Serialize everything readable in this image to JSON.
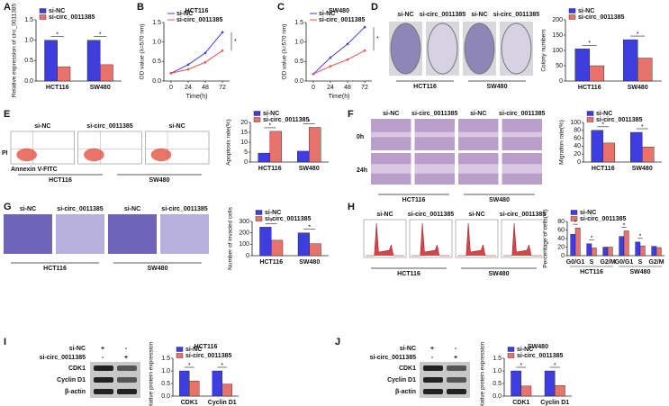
{
  "chart_data": [
    {
      "panel": "A",
      "type": "bar",
      "ylabel": "Relative expression of circ_0011385",
      "categories": [
        "HCT116",
        "SW480"
      ],
      "series": [
        {
          "name": "si-NC",
          "color": "#3d3de0",
          "values": [
            1.0,
            1.0
          ]
        },
        {
          "name": "si-circ_0011385",
          "color": "#e8736c",
          "values": [
            0.35,
            0.4
          ]
        }
      ],
      "ylim": [
        0,
        1.5
      ],
      "yticks": [
        {
          "value": 0,
          "label": "0.0"
        },
        {
          "value": 0.5,
          "label": "0.5"
        },
        {
          "value": 1,
          "label": "1.0"
        },
        {
          "value": 1.5,
          "label": "1.5"
        }
      ],
      "legend": "top-left",
      "annotations": [
        "*",
        "*"
      ]
    },
    {
      "panel": "B",
      "type": "line",
      "title": "HCT116",
      "xlabel": "Time(h)",
      "ylabel": "OD value (λ=570 nm)",
      "x": [
        0,
        24,
        48,
        72
      ],
      "xlim": [
        -10,
        82
      ],
      "xticks": [
        0,
        24,
        48,
        72
      ],
      "series": [
        {
          "name": "si-NC",
          "color": "#3d3de0",
          "values": [
            0.2,
            0.42,
            0.72,
            1.25
          ]
        },
        {
          "name": "si-circ_0011385",
          "color": "#e0544f",
          "values": [
            0.2,
            0.3,
            0.48,
            0.78
          ]
        }
      ],
      "ylim": [
        0,
        1.5
      ],
      "yticks": [
        {
          "value": 0,
          "label": "0.0"
        },
        {
          "value": 0.5,
          "label": "0.5"
        },
        {
          "value": 1,
          "label": "1.0"
        },
        {
          "value": 1.5,
          "label": "1.5"
        }
      ],
      "legend": "top-left",
      "annotations": [
        "*"
      ]
    },
    {
      "panel": "C",
      "type": "line",
      "title": "SW480",
      "xlabel": "Time(h)",
      "ylabel": "OD value (λ=570 nm)",
      "x": [
        0,
        24,
        48,
        72
      ],
      "xlim": [
        -10,
        82
      ],
      "xticks": [
        0,
        24,
        48,
        72
      ],
      "series": [
        {
          "name": "si-NC",
          "color": "#3d3de0",
          "values": [
            0.18,
            0.6,
            0.95,
            1.38
          ]
        },
        {
          "name": "si-circ_0011385",
          "color": "#e0544f",
          "values": [
            0.18,
            0.38,
            0.55,
            0.78
          ]
        }
      ],
      "ylim": [
        0,
        1.5
      ],
      "yticks": [
        {
          "value": 0,
          "label": "0.0"
        },
        {
          "value": 0.5,
          "label": "0.5"
        },
        {
          "value": 1,
          "label": "1.0"
        },
        {
          "value": 1.5,
          "label": "1.5"
        }
      ],
      "legend": "top-left",
      "annotations": [
        "*"
      ]
    },
    {
      "panel": "D",
      "type": "bar",
      "ylabel": "Colony numbers",
      "categories": [
        "HCT116",
        "SW480"
      ],
      "series": [
        {
          "name": "si-NC",
          "color": "#3d3de0",
          "values": [
            105,
            135
          ]
        },
        {
          "name": "si-circ_0011385",
          "color": "#e8736c",
          "values": [
            50,
            75
          ]
        }
      ],
      "ylim": [
        0,
        200
      ],
      "yticks": [
        0,
        50,
        100,
        150,
        200
      ],
      "legend": "top-left",
      "annotations": [
        "*",
        "*"
      ]
    },
    {
      "panel": "E",
      "type": "bar",
      "ylabel": "Apoptosis rate(%)",
      "categories": [
        "HCT116",
        "SW480"
      ],
      "series": [
        {
          "name": "si-NC",
          "color": "#3d3de0",
          "values": [
            4.5,
            5.5
          ]
        },
        {
          "name": "si-circ_0011385",
          "color": "#e8736c",
          "values": [
            15.5,
            17.5
          ]
        }
      ],
      "ylim": [
        0,
        20
      ],
      "yticks": [
        0,
        5,
        10,
        15,
        20
      ],
      "legend": "top-left",
      "annotations": [
        "*",
        "*"
      ]
    },
    {
      "panel": "F",
      "type": "bar",
      "ylabel": "Migration rate(%)",
      "categories": [
        "HCT116",
        "SW480"
      ],
      "series": [
        {
          "name": "si-NC",
          "color": "#3d3de0",
          "values": [
            80,
            75
          ]
        },
        {
          "name": "si-circ_0011385",
          "color": "#e8736c",
          "values": [
            48,
            38
          ]
        }
      ],
      "ylim": [
        0,
        100
      ],
      "yticks": [
        0,
        20,
        40,
        60,
        80,
        100
      ],
      "legend": "top-left",
      "annotations": [
        "*",
        "*"
      ]
    },
    {
      "panel": "G",
      "type": "bar",
      "ylabel": "Number of invaded cells",
      "categories": [
        "HCT116",
        "SW480"
      ],
      "series": [
        {
          "name": "si-NC",
          "color": "#3d3de0",
          "values": [
            250,
            200
          ]
        },
        {
          "name": "si-circ_0011385",
          "color": "#e8736c",
          "values": [
            135,
            105
          ]
        }
      ],
      "ylim": [
        0,
        300
      ],
      "yticks": [
        0,
        100,
        200,
        300
      ],
      "legend": "top-left",
      "annotations": [
        "*",
        "*"
      ]
    },
    {
      "panel": "H",
      "type": "bar",
      "ylabel": "Percentage of cells(%)",
      "categories": [
        "G0/G1",
        "S",
        "G2/M",
        "G0/G1",
        "S",
        "G2/M"
      ],
      "group_labels": [
        "HCT116",
        "SW480"
      ],
      "series": [
        {
          "name": "si-NC",
          "color": "#3d3de0",
          "values": [
            50,
            28,
            20,
            45,
            32,
            22
          ]
        },
        {
          "name": "si-circ_0011385",
          "color": "#e8736c",
          "values": [
            65,
            18,
            20,
            58,
            23,
            19
          ]
        }
      ],
      "ylim": [
        0,
        80
      ],
      "yticks": [
        0,
        20,
        40,
        60,
        80
      ],
      "legend": "top-left",
      "annotations": [
        "*",
        "*",
        null,
        "*",
        "*",
        null
      ]
    },
    {
      "panel": "I",
      "type": "bar",
      "title": "HCT116",
      "ylabel": "Relative protein expression",
      "categories": [
        "CDK1",
        "Cyclin D1"
      ],
      "series": [
        {
          "name": "si-NC",
          "color": "#3d3de0",
          "values": [
            1.0,
            1.0
          ]
        },
        {
          "name": "si-circ_0011385",
          "color": "#e8736c",
          "values": [
            0.6,
            0.48
          ]
        }
      ],
      "ylim": [
        0,
        1.5
      ],
      "yticks": [
        {
          "value": 0,
          "label": "0.0"
        },
        {
          "value": 0.5,
          "label": "0.5"
        },
        {
          "value": 1,
          "label": "1.0"
        },
        {
          "value": 1.5,
          "label": "1.5"
        }
      ],
      "legend": "top-left",
      "annotations": [
        "*",
        "*"
      ]
    },
    {
      "panel": "J",
      "type": "bar",
      "title": "SW480",
      "ylabel": "Relative protein expression",
      "categories": [
        "CDK1",
        "Cyclin D1"
      ],
      "series": [
        {
          "name": "si-NC",
          "color": "#3d3de0",
          "values": [
            1.0,
            1.0
          ]
        },
        {
          "name": "si-circ_0011385",
          "color": "#e8736c",
          "values": [
            0.4,
            0.42
          ]
        }
      ],
      "ylim": [
        0,
        1.5
      ],
      "yticks": [
        {
          "value": 0,
          "label": "0.0"
        },
        {
          "value": 0.5,
          "label": "0.5"
        },
        {
          "value": 1,
          "label": "1.0"
        },
        {
          "value": 1.5,
          "label": "1.5"
        }
      ],
      "legend": "top-left",
      "annotations": [
        "*",
        "*"
      ]
    }
  ],
  "images": {
    "D": {
      "labels": [
        "si-NC",
        "si-circ_0011385",
        "si-NC",
        "si-circ_0011385"
      ],
      "groups": [
        "HCT116",
        "SW480"
      ]
    },
    "E": {
      "labels": [
        "si-NC",
        "si-circ_0011385",
        "si-NC"
      ],
      "groups": [
        "HCT116",
        "SW480"
      ],
      "y_axis": "PI",
      "x_axis": "Annexin V-FITC"
    },
    "F": {
      "labels": [
        "si-NC",
        "si-circ_0011385",
        "si-NC",
        "si-circ_0011385"
      ],
      "rows": [
        "0h",
        "24h"
      ],
      "groups": [
        "HCT116",
        "SW480"
      ]
    },
    "G": {
      "labels": [
        "si-NC",
        "si-circ_0011385",
        "si-NC",
        "si-circ_0011385"
      ],
      "groups": [
        "HCT116",
        "SW480"
      ]
    },
    "H": {
      "labels": [
        "si-NC",
        "si-circ_0011385",
        "si-NC",
        "si-circ_0011385"
      ],
      "groups": [
        "HCT116",
        "SW480"
      ]
    },
    "I": {
      "rows": [
        "si-NC",
        "si-circ_0011385"
      ],
      "signs": [
        [
          "+",
          "-"
        ],
        [
          "-",
          "+"
        ]
      ],
      "bands": [
        "CDK1",
        "Cyclin D1",
        "β-actin"
      ]
    },
    "J": {
      "rows": [
        "si-NC",
        "si-circ_0011385"
      ],
      "signs": [
        [
          "+",
          "-"
        ],
        [
          "-",
          "+"
        ]
      ],
      "bands": [
        "CDK1",
        "Cyclin D1",
        "β-actin"
      ]
    }
  }
}
